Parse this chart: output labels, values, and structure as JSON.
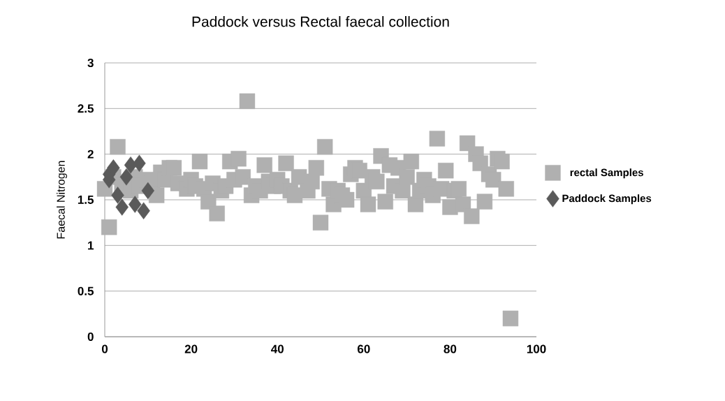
{
  "chart_data": {
    "type": "scatter",
    "title": "Paddock versus Rectal faecal collection",
    "ylabel": "Faecal Nitrogen",
    "xlim": [
      0,
      100
    ],
    "xticks": [
      0,
      20,
      40,
      60,
      80,
      100
    ],
    "ylim": [
      0,
      3
    ],
    "yticks": [
      0,
      0.5,
      1,
      1.5,
      2,
      2.5,
      3
    ],
    "grid": "y",
    "legend": "right",
    "series": [
      {
        "name": "rectal Samples",
        "color": "#b0b0b0",
        "marker": "square",
        "x": [
          0,
          1,
          2,
          3,
          4,
          6,
          7,
          8,
          10,
          11,
          12,
          13,
          14,
          15,
          16,
          17,
          19,
          20,
          21,
          22,
          23,
          24,
          25,
          26,
          27,
          28,
          29,
          30,
          31,
          32,
          33,
          34,
          35,
          36,
          37,
          38,
          39,
          40,
          41,
          42,
          43,
          44,
          45,
          47,
          48,
          49,
          50,
          51,
          52,
          53,
          54,
          55,
          56,
          57,
          58,
          59,
          60,
          61,
          62,
          63,
          64,
          65,
          66,
          67,
          68,
          69,
          70,
          71,
          72,
          73,
          74,
          75,
          76,
          77,
          78,
          79,
          80,
          81,
          82,
          83,
          84,
          85,
          86,
          87,
          88,
          89,
          90,
          91,
          92,
          93,
          94
        ],
        "values": [
          1.62,
          1.2,
          1.75,
          2.08,
          1.65,
          1.6,
          1.75,
          1.65,
          1.72,
          1.68,
          1.55,
          1.8,
          1.72,
          1.85,
          1.85,
          1.68,
          1.62,
          1.72,
          1.65,
          1.92,
          1.62,
          1.48,
          1.68,
          1.35,
          1.6,
          1.65,
          1.92,
          1.72,
          1.95,
          1.75,
          2.58,
          1.55,
          1.65,
          1.6,
          1.88,
          1.7,
          1.65,
          1.72,
          1.65,
          1.9,
          1.6,
          1.55,
          1.75,
          1.6,
          1.7,
          1.85,
          1.25,
          2.08,
          1.62,
          1.45,
          1.6,
          1.55,
          1.5,
          1.78,
          1.85,
          1.82,
          1.6,
          1.45,
          1.75,
          1.7,
          1.98,
          1.48,
          1.88,
          1.65,
          1.85,
          1.6,
          1.75,
          1.92,
          1.45,
          1.6,
          1.72,
          1.65,
          1.55,
          2.17,
          1.62,
          1.82,
          1.42,
          1.6,
          1.62,
          1.45,
          2.12,
          1.32,
          2.0,
          1.9,
          1.48,
          1.78,
          1.72,
          1.95,
          1.92,
          1.62,
          0.2
        ]
      },
      {
        "name": "Paddock Samples",
        "color": "#5a5a5a",
        "marker": "diamond",
        "x": [
          1,
          1,
          2,
          3,
          4,
          5,
          6,
          7,
          8,
          9,
          10
        ],
        "values": [
          1.72,
          1.78,
          1.85,
          1.55,
          1.42,
          1.75,
          1.88,
          1.45,
          1.9,
          1.38,
          1.6
        ]
      }
    ]
  }
}
